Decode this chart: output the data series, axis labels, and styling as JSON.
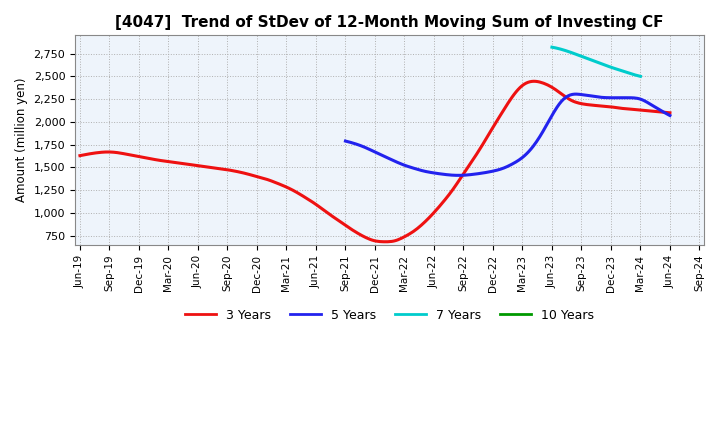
{
  "title": "[4047]  Trend of StDev of 12-Month Moving Sum of Investing CF",
  "ylabel": "Amount (million yen)",
  "bg_color": "#ffffff",
  "grid_color": "#b0b0b0",
  "plot_bg_color": "#eef4fb",
  "series": {
    "3yr": {
      "color": "#ee1111",
      "label": "3 Years",
      "x": [
        0,
        1,
        2,
        3,
        4,
        5,
        6,
        7,
        8,
        9,
        10,
        11,
        12,
        13,
        14,
        15,
        16,
        17,
        18,
        19,
        20,
        21,
        22,
        23,
        24,
        25,
        26,
        27,
        28,
        29,
        30,
        31,
        32,
        33,
        34,
        35,
        36,
        37,
        38,
        39,
        40,
        41,
        42,
        43,
        44,
        45,
        46,
        47,
        48,
        49,
        50,
        51,
        52,
        53,
        54,
        55,
        56,
        57,
        58,
        59,
        60
      ],
      "y": [
        1630,
        1650,
        1665,
        1670,
        1660,
        1640,
        1620,
        1600,
        1580,
        1565,
        1550,
        1535,
        1520,
        1505,
        1490,
        1475,
        1455,
        1430,
        1400,
        1370,
        1330,
        1285,
        1230,
        1165,
        1095,
        1015,
        940,
        865,
        795,
        735,
        695,
        685,
        695,
        740,
        805,
        895,
        1005,
        1130,
        1270,
        1430,
        1590,
        1760,
        1940,
        2115,
        2280,
        2400,
        2445,
        2430,
        2380,
        2305,
        2235,
        2200,
        2185,
        2175,
        2165,
        2150,
        2140,
        2130,
        2120,
        2110,
        2100
      ]
    },
    "5yr": {
      "color": "#2222ee",
      "label": "5 Years",
      "x": [
        27,
        28,
        29,
        30,
        31,
        32,
        33,
        34,
        35,
        36,
        37,
        38,
        39,
        40,
        41,
        42,
        43,
        44,
        45,
        46,
        47,
        48,
        49,
        50,
        51,
        52,
        53,
        54,
        55,
        56,
        57,
        58,
        59,
        60
      ],
      "y": [
        1790,
        1760,
        1720,
        1670,
        1620,
        1570,
        1525,
        1490,
        1460,
        1440,
        1425,
        1415,
        1415,
        1425,
        1440,
        1460,
        1490,
        1540,
        1610,
        1720,
        1880,
        2070,
        2230,
        2300,
        2300,
        2285,
        2270,
        2265,
        2265,
        2265,
        2250,
        2195,
        2130,
        2070
      ]
    },
    "7yr": {
      "color": "#00cccc",
      "label": "7 Years",
      "x": [
        48,
        49,
        50,
        51,
        52,
        53,
        54,
        55,
        56,
        57
      ],
      "y": [
        2820,
        2795,
        2760,
        2720,
        2680,
        2640,
        2600,
        2565,
        2530,
        2500
      ]
    },
    "10yr": {
      "color": "#009900",
      "label": "10 Years",
      "x": [],
      "y": []
    }
  },
  "xtick_labels": [
    "Jun-19",
    "Sep-19",
    "Dec-19",
    "Mar-20",
    "Jun-20",
    "Sep-20",
    "Dec-20",
    "Mar-21",
    "Jun-21",
    "Sep-21",
    "Dec-21",
    "Mar-22",
    "Jun-22",
    "Sep-22",
    "Dec-22",
    "Mar-23",
    "Jun-23",
    "Sep-23",
    "Dec-23",
    "Mar-24",
    "Jun-24",
    "Sep-24"
  ],
  "xtick_positions": [
    0,
    3,
    6,
    9,
    12,
    15,
    18,
    21,
    24,
    27,
    30,
    33,
    36,
    39,
    42,
    45,
    48,
    51,
    54,
    57,
    60,
    63
  ],
  "ylim": [
    650,
    2950
  ],
  "xlim": [
    -0.5,
    63.5
  ]
}
